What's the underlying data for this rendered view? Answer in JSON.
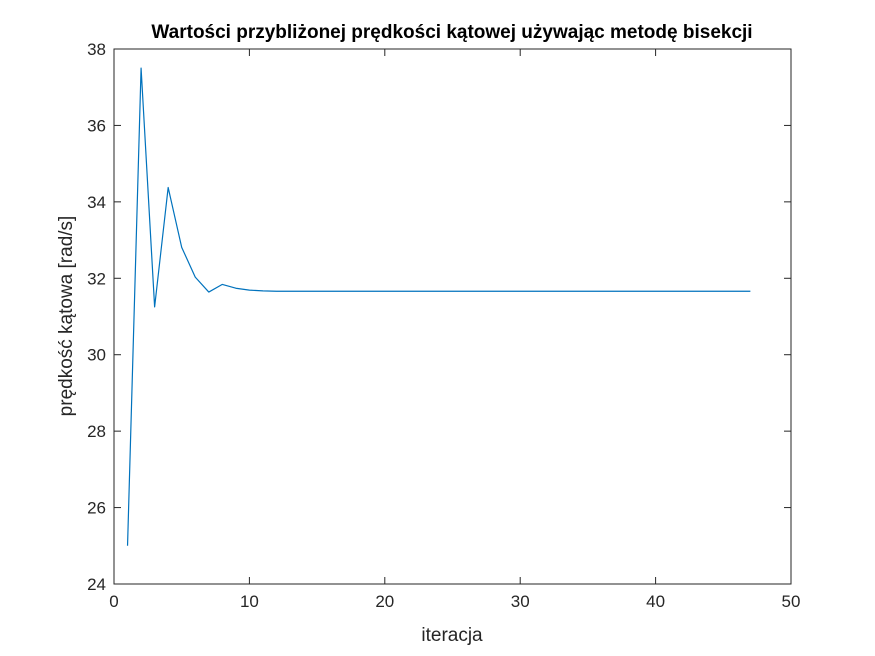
{
  "chart_data": {
    "type": "line",
    "title": "Wartości przybliżonej prędkości kątowej używając metodę bisekcji",
    "xlabel": "iteracja",
    "ylabel": "prędkość kątowa [rad/s]",
    "xlim": [
      0,
      50
    ],
    "ylim": [
      24,
      38
    ],
    "xticks": [
      0,
      10,
      20,
      30,
      40,
      50
    ],
    "yticks": [
      24,
      26,
      28,
      30,
      32,
      34,
      36,
      38
    ],
    "grid": false,
    "series": [
      {
        "color": "#0072BD",
        "x": [
          1,
          2,
          3,
          4,
          5,
          6,
          7,
          8,
          9,
          10,
          11,
          12,
          13,
          14,
          15,
          16,
          17,
          18,
          19,
          20,
          21,
          22,
          23,
          24,
          25,
          26,
          27,
          28,
          29,
          30,
          31,
          32,
          33,
          34,
          35,
          36,
          37,
          38,
          39,
          40,
          41,
          42,
          43,
          44,
          45,
          46,
          47
        ],
        "y": [
          25.0,
          37.5,
          31.25,
          34.375,
          32.81,
          32.03,
          31.64,
          31.84,
          31.74,
          31.69,
          31.67,
          31.66,
          31.66,
          31.66,
          31.66,
          31.66,
          31.66,
          31.66,
          31.66,
          31.66,
          31.66,
          31.66,
          31.66,
          31.66,
          31.66,
          31.66,
          31.66,
          31.66,
          31.66,
          31.66,
          31.66,
          31.66,
          31.66,
          31.66,
          31.66,
          31.66,
          31.66,
          31.66,
          31.66,
          31.66,
          31.66,
          31.66,
          31.66,
          31.66,
          31.66,
          31.66,
          31.66
        ]
      }
    ]
  }
}
